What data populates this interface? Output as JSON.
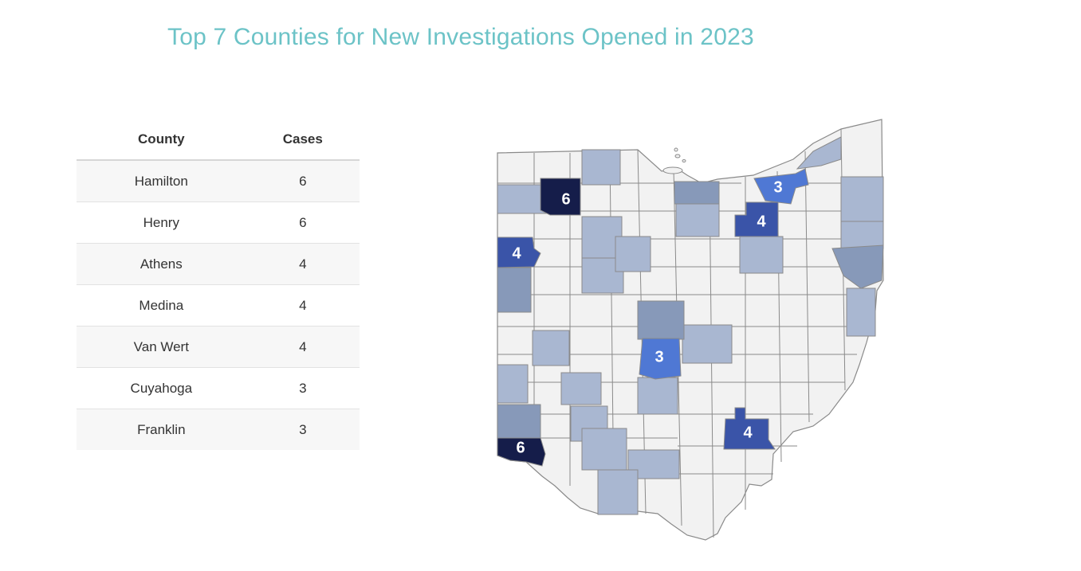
{
  "title": "Top 7 Counties for New Investigations Opened in 2023",
  "table": {
    "headers": [
      "County",
      "Cases"
    ],
    "rows": [
      {
        "county": "Hamilton",
        "cases": "6"
      },
      {
        "county": "Henry",
        "cases": "6"
      },
      {
        "county": "Athens",
        "cases": "4"
      },
      {
        "county": "Medina",
        "cases": "4"
      },
      {
        "county": "Van Wert",
        "cases": "4"
      },
      {
        "county": "Cuyahoga",
        "cases": "3"
      },
      {
        "county": "Franklin",
        "cases": "3"
      }
    ]
  },
  "map_labels": {
    "henry": "6",
    "hamilton": "6",
    "van_wert": "4",
    "medina": "4",
    "athens": "4",
    "cuyahoga": "3",
    "franklin": "3"
  },
  "colors": {
    "six": "#151d4a",
    "four": "#3a54a8",
    "three": "#4f78d4",
    "mid": "#8799b9",
    "light": "#a9b7d1",
    "none": "#f2f2f2"
  }
}
